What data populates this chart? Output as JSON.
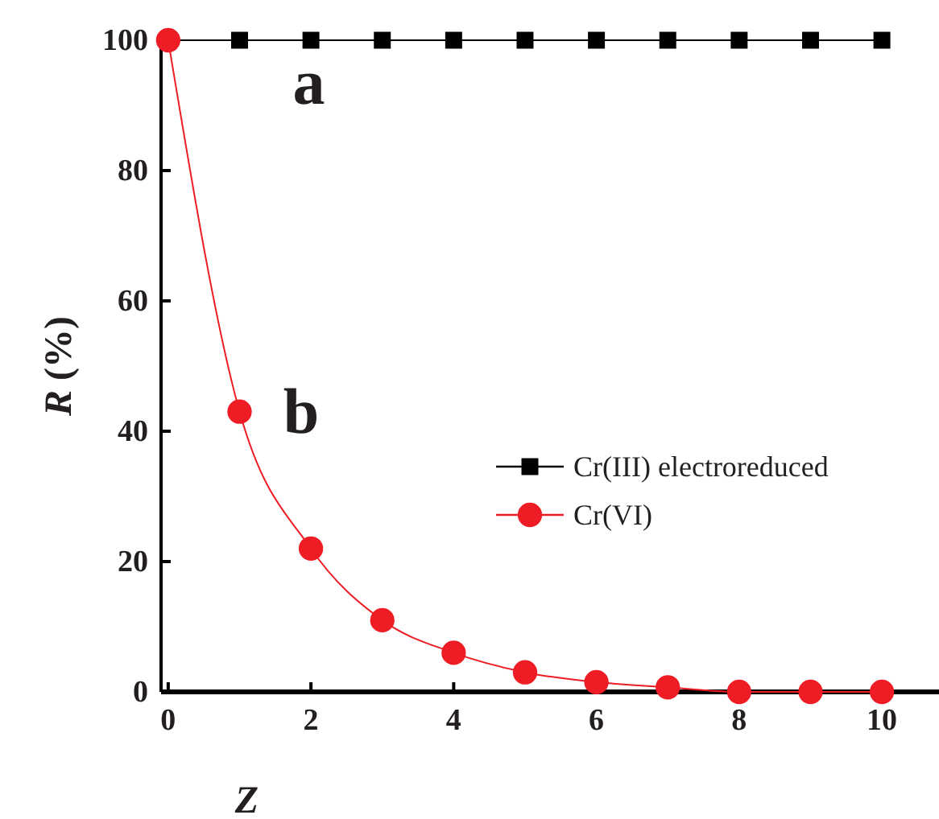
{
  "chart_data": {
    "type": "line",
    "xlabel": "Z",
    "ylabel": "R (%)",
    "xlim": [
      -0.1,
      10.8
    ],
    "xticks": [
      0,
      2,
      4,
      6,
      8,
      10
    ],
    "ylim": [
      0,
      100
    ],
    "yticks": [
      0,
      20,
      40,
      60,
      80,
      100
    ],
    "legend": "right",
    "grid": false,
    "annotations": [
      "a",
      "b"
    ],
    "series": [
      {
        "name": "Cr(III) electroreduced",
        "color": "#000000",
        "marker": "square",
        "x": [
          0,
          1,
          2,
          3,
          4,
          5,
          6,
          7,
          8,
          9,
          10
        ],
        "values": [
          100,
          100,
          100,
          100,
          100,
          100,
          100,
          100,
          100,
          100,
          100
        ]
      },
      {
        "name": "Cr(VI)",
        "color": "#ee1c24",
        "marker": "circle",
        "x": [
          0,
          1,
          2,
          3,
          4,
          5,
          6,
          7,
          8,
          9,
          10
        ],
        "values": [
          100,
          43,
          22,
          11,
          6,
          3,
          1.5,
          0.7,
          0,
          0,
          0
        ]
      }
    ]
  }
}
